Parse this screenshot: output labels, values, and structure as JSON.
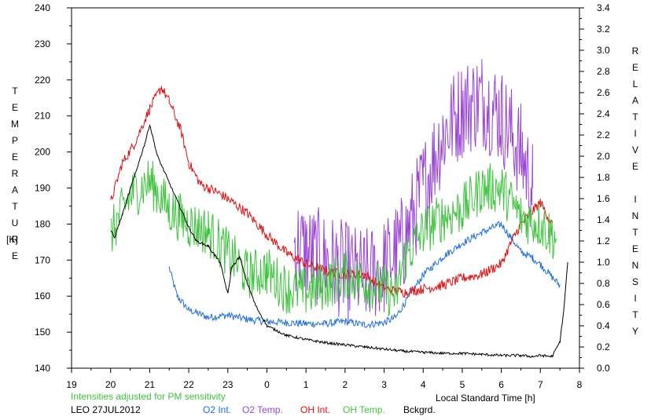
{
  "chart_data": {
    "type": "line",
    "station": "LEO 27JUL2012",
    "note": "Intensities adjusted for PM sensitivity",
    "xlabel": "Local Standard Time [h]",
    "x_ticks": [
      "19",
      "20",
      "21",
      "22",
      "23",
      "0",
      "1",
      "2",
      "3",
      "4",
      "5",
      "6",
      "7",
      "8"
    ],
    "xlim": [
      19,
      32
    ],
    "left_axis": {
      "label_letters": [
        "T",
        "E",
        "M",
        "P",
        "E",
        "R",
        "A",
        "T",
        "U",
        "R",
        "E"
      ],
      "unit": "[K]",
      "ylim": [
        140,
        240
      ],
      "ticks": [
        "140",
        "150",
        "160",
        "170",
        "180",
        "190",
        "200",
        "210",
        "220",
        "230",
        "240"
      ]
    },
    "right_axis": {
      "label_letters": [
        "R",
        "E",
        "L",
        "A",
        "T",
        "I",
        "V",
        "E",
        "",
        "I",
        "N",
        "T",
        "E",
        "N",
        "S",
        "I",
        "T",
        "Y"
      ],
      "ylim": [
        0,
        3.4
      ],
      "ticks": [
        "0.0",
        "0.2",
        "0.4",
        "0.6",
        "0.8",
        "1.0",
        "1.2",
        "1.4",
        "1.6",
        "1.8",
        "2.0",
        "2.2",
        "2.4",
        "2.6",
        "2.8",
        "3.0",
        "3.2",
        "3.4"
      ]
    },
    "series": [
      {
        "name": "O2 Int.",
        "color": "#1e6fe0",
        "axis": "right",
        "noise": 0.035,
        "x": [
          21.5,
          21.7,
          22.0,
          22.5,
          23.0,
          23.5,
          24.0,
          24.5,
          25.0,
          25.5,
          26.0,
          26.5,
          27.0,
          27.3,
          27.5,
          28.0,
          28.5,
          29.0,
          29.5,
          30.0,
          30.5,
          30.8,
          31.0,
          31.5
        ],
        "y": [
          0.95,
          0.68,
          0.55,
          0.48,
          0.5,
          0.46,
          0.44,
          0.43,
          0.42,
          0.42,
          0.44,
          0.41,
          0.43,
          0.48,
          0.6,
          0.88,
          1.05,
          1.18,
          1.28,
          1.36,
          1.1,
          1.04,
          0.98,
          0.78
        ]
      },
      {
        "name": "O2 Temp.",
        "color": "#9a45d6",
        "axis": "left",
        "noise": 14,
        "x": [
          24.7,
          25.0,
          25.5,
          26.0,
          26.5,
          27.0,
          27.5,
          28.0,
          28.5,
          29.0,
          29.5,
          30.0,
          30.5,
          30.8
        ],
        "y": [
          175,
          172,
          170,
          167,
          165,
          168,
          175,
          190,
          205,
          212,
          215,
          210,
          200,
          190
        ]
      },
      {
        "name": "OH Int.",
        "color": "#e01010",
        "axis": "left",
        "noise": 1.4,
        "x": [
          20.0,
          20.3,
          20.6,
          21.0,
          21.3,
          21.5,
          21.8,
          22.0,
          22.3,
          22.7,
          23.0,
          23.5,
          24.0,
          24.5,
          25.0,
          25.5,
          26.0,
          26.5,
          27.0,
          27.5,
          28.0,
          28.5,
          29.0,
          29.5,
          30.0,
          30.3,
          30.5,
          31.0,
          31.3
        ],
        "y": [
          186,
          197,
          202,
          212,
          218,
          214,
          206,
          197,
          191,
          189,
          187,
          183,
          177,
          172,
          169,
          167,
          166,
          166,
          162,
          161,
          162,
          163,
          165,
          166,
          169,
          176,
          180,
          186,
          180
        ]
      },
      {
        "name": "OH Temp.",
        "color": "#3ec43e",
        "axis": "left",
        "noise": 7,
        "x": [
          20.0,
          20.5,
          21.0,
          21.5,
          22.0,
          22.5,
          23.0,
          23.5,
          24.0,
          24.5,
          25.0,
          25.5,
          26.0,
          26.5,
          27.0,
          27.3,
          27.5,
          28.0,
          28.5,
          29.0,
          29.5,
          30.0,
          30.5,
          31.0,
          31.4
        ],
        "y": [
          177,
          188,
          192,
          184,
          180,
          178,
          172,
          166,
          167,
          162,
          161,
          163,
          166,
          164,
          162,
          160,
          170,
          178,
          182,
          184,
          190,
          190,
          182,
          180,
          176
        ]
      },
      {
        "name": "Bckgrd.",
        "color": "#000000",
        "axis": "right",
        "noise": 0.012,
        "x": [
          20.0,
          20.1,
          20.3,
          20.6,
          20.9,
          21.0,
          21.2,
          21.5,
          21.8,
          22.0,
          22.2,
          22.5,
          22.8,
          23.0,
          23.1,
          23.3,
          23.5,
          23.7,
          24.0,
          24.5,
          25.0,
          25.5,
          26.0,
          26.5,
          27.0,
          27.5,
          28.0,
          28.5,
          29.0,
          29.5,
          30.0,
          30.5,
          30.8,
          31.0,
          31.3,
          31.5,
          31.6,
          31.7
        ],
        "y": [
          1.3,
          1.23,
          1.45,
          1.8,
          2.15,
          2.3,
          2.0,
          1.75,
          1.5,
          1.33,
          1.2,
          1.15,
          1.0,
          0.7,
          0.95,
          1.05,
          0.8,
          0.6,
          0.4,
          0.31,
          0.27,
          0.24,
          0.22,
          0.2,
          0.18,
          0.16,
          0.15,
          0.14,
          0.14,
          0.13,
          0.12,
          0.12,
          0.11,
          0.12,
          0.11,
          0.25,
          0.55,
          1.0
        ]
      }
    ]
  }
}
